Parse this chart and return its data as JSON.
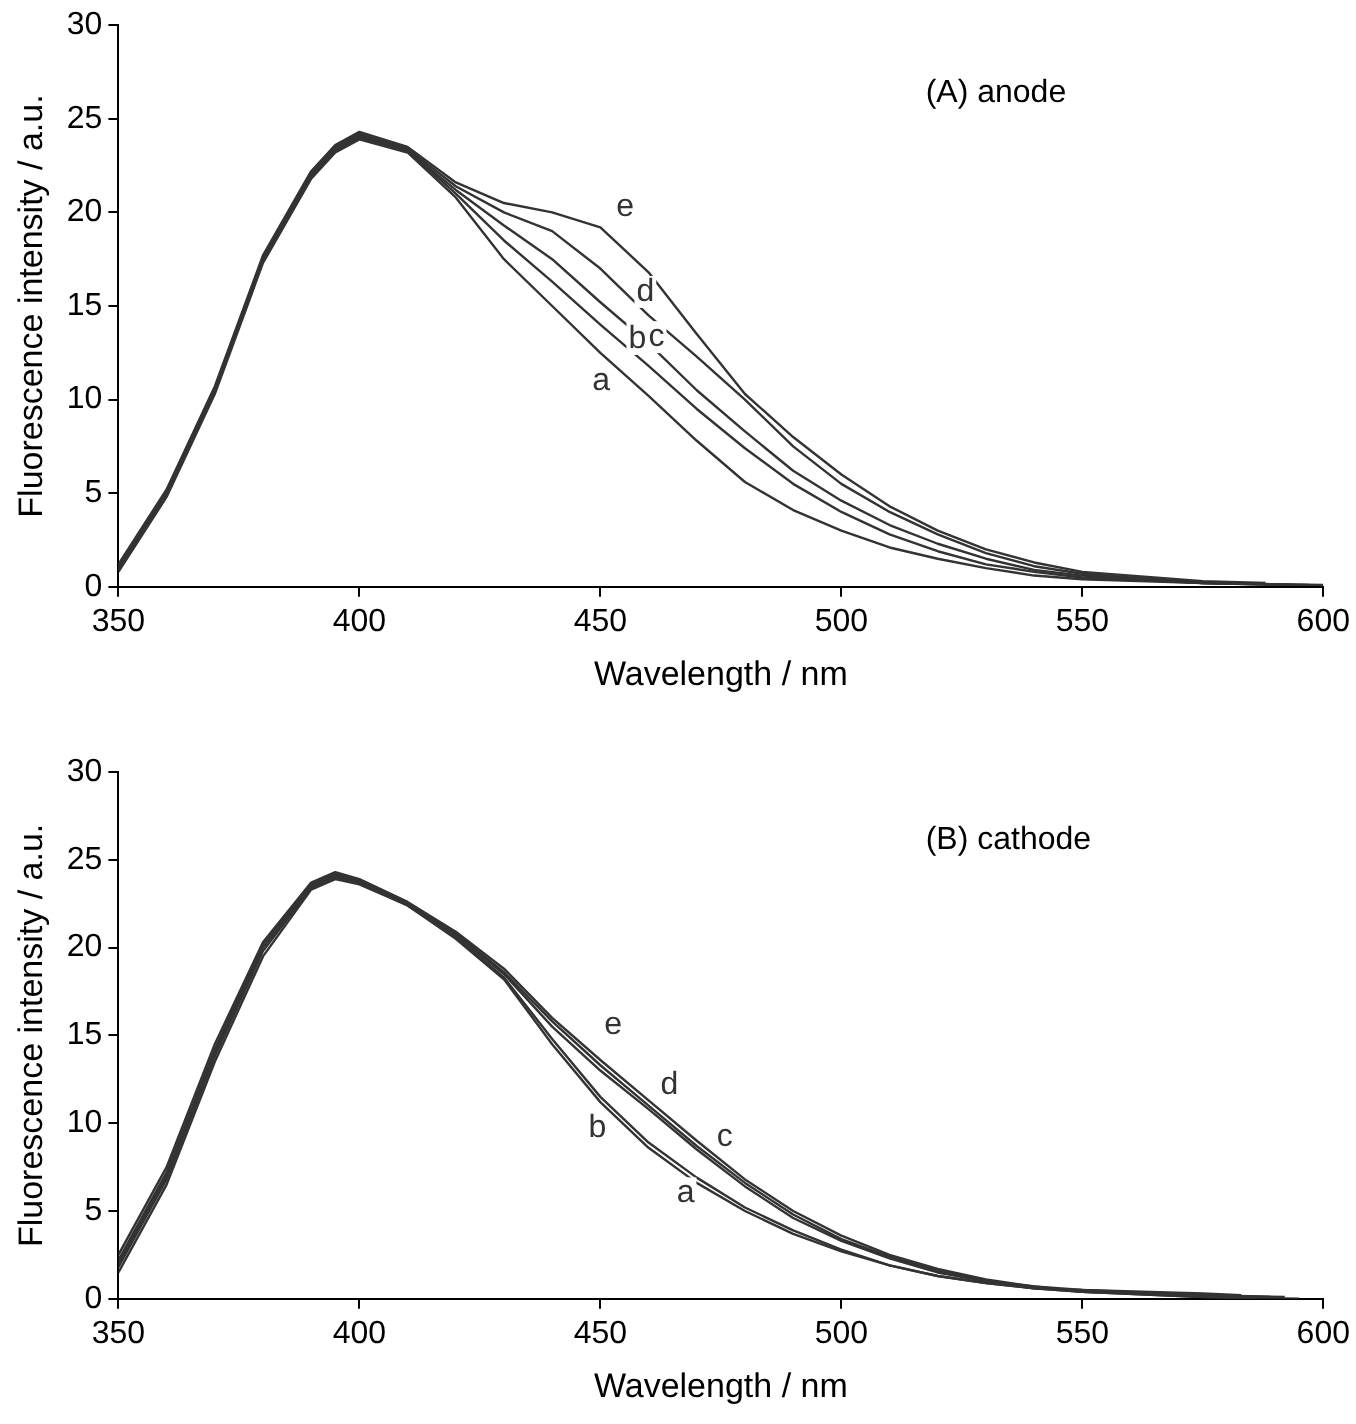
{
  "chart_data": [
    {
      "type": "line",
      "title": "(A) anode",
      "xlabel": "Wavelength / nm",
      "ylabel": "Fluorescence intensity / a.u.",
      "xlim": [
        350,
        600
      ],
      "xticks": [
        350,
        400,
        450,
        500,
        550,
        600
      ],
      "ylim": [
        0,
        30
      ],
      "yticks": [
        0,
        5,
        10,
        15,
        20,
        25,
        30
      ],
      "marker": "none",
      "series": [
        {
          "name": "a",
          "color": "#333333",
          "x": [
            350,
            360,
            370,
            380,
            390,
            395,
            400,
            410,
            420,
            430,
            440,
            450,
            460,
            470,
            480,
            490,
            500,
            510,
            520,
            530,
            540,
            550,
            575,
            600
          ],
          "values": [
            0.8,
            4.8,
            10.3,
            17.3,
            21.8,
            23.2,
            23.9,
            23.2,
            20.8,
            17.5,
            15,
            12.5,
            10.2,
            7.8,
            5.6,
            4.1,
            3,
            2.1,
            1.5,
            1,
            0.6,
            0.4,
            0.2,
            0.1
          ]
        },
        {
          "name": "b",
          "color": "#333333",
          "x": [
            350,
            360,
            370,
            380,
            390,
            395,
            400,
            410,
            420,
            430,
            440,
            450,
            460,
            470,
            480,
            490,
            500,
            510,
            520,
            530,
            540,
            550,
            575,
            597
          ],
          "values": [
            0.9,
            4.9,
            10.4,
            17.4,
            21.9,
            23.3,
            24,
            23.3,
            21,
            18.5,
            16.3,
            14,
            11.8,
            9.5,
            7.4,
            5.5,
            4,
            2.8,
            1.9,
            1.2,
            0.8,
            0.5,
            0.2,
            0.1
          ]
        },
        {
          "name": "c",
          "color": "#333333",
          "x": [
            350,
            360,
            370,
            380,
            390,
            395,
            400,
            410,
            420,
            430,
            440,
            450,
            460,
            470,
            480,
            490,
            500,
            510,
            520,
            530,
            540,
            550,
            575,
            594
          ],
          "values": [
            1,
            5,
            10.5,
            17.5,
            22,
            23.4,
            24.1,
            23.3,
            21.2,
            19.3,
            17.5,
            15.2,
            13,
            10.5,
            8.3,
            6.2,
            4.6,
            3.3,
            2.3,
            1.5,
            0.9,
            0.6,
            0.2,
            0.1
          ]
        },
        {
          "name": "d",
          "color": "#333333",
          "x": [
            350,
            360,
            370,
            380,
            390,
            395,
            400,
            410,
            420,
            430,
            440,
            450,
            460,
            470,
            480,
            490,
            500,
            510,
            520,
            530,
            540,
            550,
            575,
            591
          ],
          "values": [
            1.1,
            5.1,
            10.6,
            17.6,
            22.1,
            23.5,
            24.2,
            23.4,
            21.4,
            20,
            19,
            17,
            14.5,
            12.3,
            10,
            7.5,
            5.5,
            4,
            2.8,
            1.8,
            1.1,
            0.7,
            0.2,
            0.1
          ]
        },
        {
          "name": "e",
          "color": "#333333",
          "x": [
            350,
            360,
            370,
            380,
            390,
            395,
            400,
            410,
            420,
            430,
            440,
            450,
            460,
            470,
            480,
            490,
            500,
            510,
            520,
            530,
            540,
            550,
            575,
            588
          ],
          "values": [
            1.2,
            5.2,
            10.7,
            17.7,
            22.2,
            23.6,
            24.3,
            23.5,
            21.6,
            20.5,
            20,
            19.2,
            16.8,
            13.5,
            10.3,
            8,
            6,
            4.3,
            3,
            2,
            1.3,
            0.8,
            0.3,
            0.2
          ]
        }
      ]
    },
    {
      "type": "line",
      "title": "(B) cathode",
      "xlabel": "Wavelength / nm",
      "ylabel": "Fluorescence intensity / a.u.",
      "xlim": [
        350,
        600
      ],
      "xticks": [
        350,
        400,
        450,
        500,
        550,
        600
      ],
      "ylim": [
        0,
        30
      ],
      "yticks": [
        0,
        5,
        10,
        15,
        20,
        25,
        30
      ],
      "marker": "none",
      "series": [
        {
          "name": "a",
          "color": "#333333",
          "x": [
            350,
            360,
            370,
            380,
            390,
            395,
            400,
            410,
            420,
            430,
            440,
            450,
            460,
            470,
            480,
            490,
            500,
            510,
            520,
            530,
            540,
            550,
            575,
            595
          ],
          "values": [
            1.5,
            6.5,
            13.5,
            19.5,
            23.3,
            23.9,
            23.6,
            22.4,
            20.5,
            18.2,
            14.5,
            11.2,
            8.6,
            6.6,
            5,
            3.7,
            2.7,
            1.9,
            1.3,
            0.9,
            0.6,
            0.4,
            0.1,
            0
          ]
        },
        {
          "name": "b",
          "color": "#333333",
          "x": [
            350,
            360,
            370,
            380,
            390,
            395,
            400,
            410,
            420,
            430,
            440,
            450,
            460,
            470,
            480,
            490,
            500,
            510,
            520,
            530,
            540,
            550,
            575,
            592
          ],
          "values": [
            1.8,
            6.8,
            13.8,
            19.8,
            23.4,
            24,
            23.7,
            22.4,
            20.6,
            18.3,
            14.8,
            11.5,
            8.9,
            6.9,
            5.2,
            3.9,
            2.8,
            1.9,
            1.3,
            0.9,
            0.6,
            0.4,
            0.2,
            0.1
          ]
        },
        {
          "name": "c",
          "color": "#333333",
          "x": [
            350,
            360,
            370,
            380,
            390,
            395,
            400,
            410,
            420,
            430,
            440,
            450,
            460,
            470,
            480,
            490,
            500,
            510,
            520,
            530,
            540,
            550,
            575,
            589
          ],
          "values": [
            2,
            7,
            14,
            20,
            23.5,
            24.1,
            23.7,
            22.5,
            20.7,
            18.5,
            15.5,
            13,
            10.8,
            8.5,
            6.4,
            4.6,
            3.3,
            2.3,
            1.5,
            1,
            0.6,
            0.5,
            0.2,
            0.1
          ]
        },
        {
          "name": "d",
          "color": "#333333",
          "x": [
            350,
            360,
            370,
            380,
            390,
            395,
            400,
            410,
            420,
            430,
            440,
            450,
            460,
            470,
            480,
            490,
            500,
            510,
            520,
            530,
            540,
            550,
            575,
            586
          ],
          "values": [
            2.2,
            7.2,
            14.2,
            20.2,
            23.6,
            24.2,
            23.8,
            22.5,
            20.8,
            18.6,
            15.8,
            13.3,
            11,
            8.7,
            6.6,
            4.8,
            3.4,
            2.4,
            1.6,
            1,
            0.7,
            0.4,
            0.1,
            0
          ]
        },
        {
          "name": "e",
          "color": "#333333",
          "x": [
            350,
            360,
            370,
            380,
            390,
            395,
            400,
            410,
            420,
            430,
            440,
            450,
            460,
            470,
            480,
            490,
            500,
            510,
            520,
            530,
            540,
            550,
            575,
            583
          ],
          "values": [
            2.5,
            7.5,
            14.5,
            20.3,
            23.7,
            24.3,
            23.9,
            22.6,
            20.9,
            18.8,
            16,
            13.6,
            11.3,
            9,
            6.8,
            5,
            3.6,
            2.5,
            1.7,
            1.1,
            0.7,
            0.5,
            0.3,
            0.2
          ]
        }
      ]
    }
  ]
}
